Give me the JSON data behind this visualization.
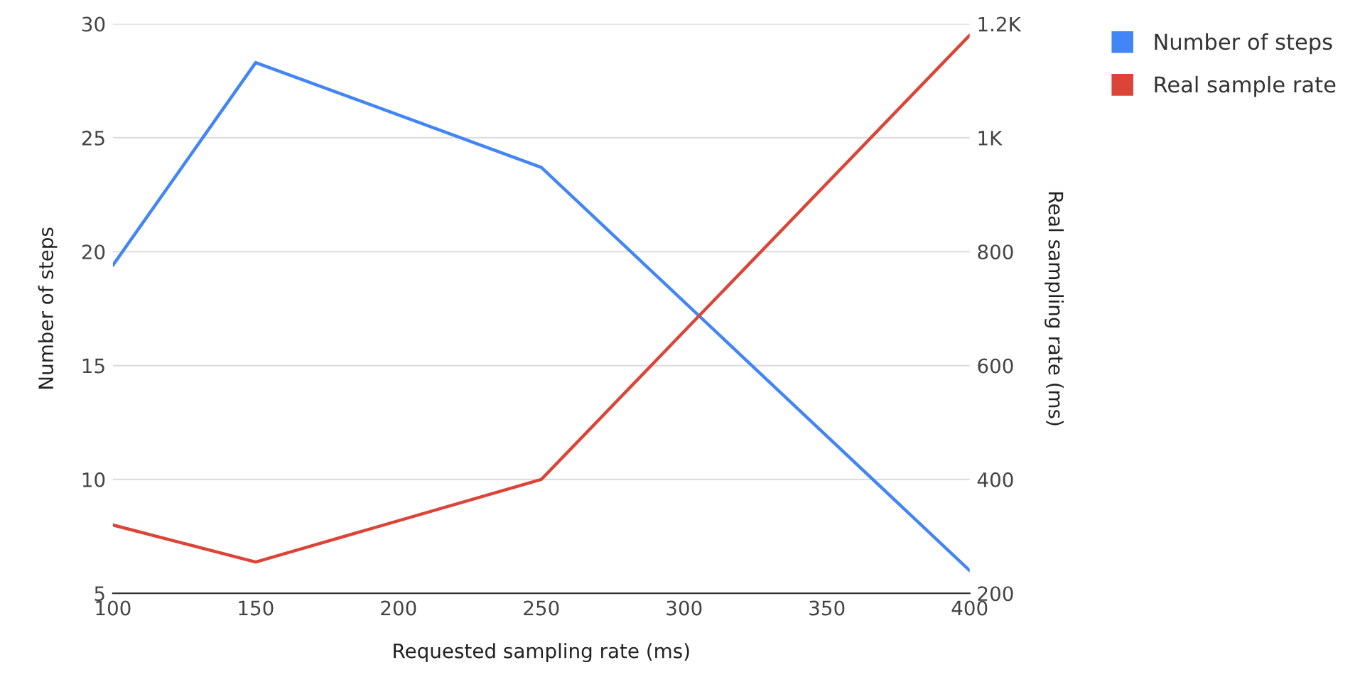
{
  "chart_data": {
    "type": "line",
    "xlabel": "Requested sampling rate (ms)",
    "ylabel": "Number of steps",
    "y2label": "Real sampling rate (ms)",
    "x": [
      100,
      150,
      250,
      400
    ],
    "series": [
      {
        "name": "Number of steps",
        "color": "#4285f4",
        "values": [
          19.4,
          28.3,
          23.7,
          6
        ]
      },
      {
        "name": "Real sample rate",
        "color": "#db4437",
        "values": [
          320,
          255,
          400,
          1180
        ],
        "axis": "y2"
      }
    ],
    "xlim": [
      100,
      400
    ],
    "xticks": [
      100,
      150,
      200,
      250,
      300,
      350,
      400
    ],
    "ylim": [
      5,
      30
    ],
    "yticks": [
      5,
      10,
      15,
      20,
      25,
      30
    ],
    "y2lim": [
      200,
      1200
    ],
    "y2ticks": [
      200,
      400,
      600,
      800,
      {
        "value": 1000,
        "label": "1K"
      },
      {
        "value": 1200,
        "label": "1.2K"
      }
    ],
    "grid": "y",
    "legend": "right",
    "marker": "none",
    "line_style": "solid"
  }
}
